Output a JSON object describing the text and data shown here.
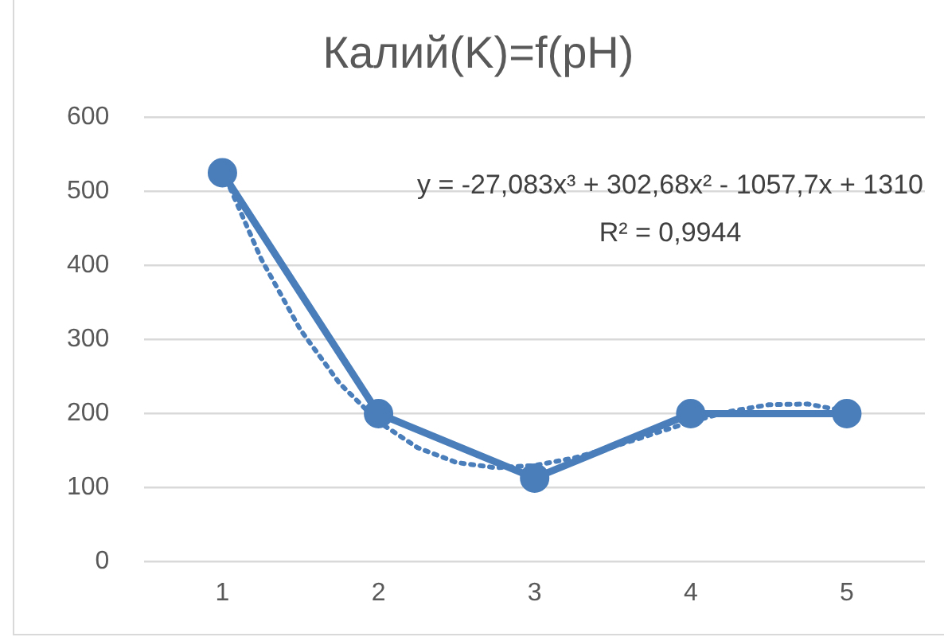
{
  "chart_data": {
    "type": "line",
    "title": "Калий(K)=f(pH)",
    "x": [
      1,
      2,
      3,
      4,
      5
    ],
    "xlim": [
      0.5,
      5.5
    ],
    "xticks": [
      1,
      2,
      3,
      4,
      5
    ],
    "ylim": [
      0,
      600
    ],
    "yticks": [
      0,
      100,
      200,
      300,
      400,
      500,
      600
    ],
    "grid": "y",
    "legend": false,
    "series": [
      {
        "color": "#4a7ebb",
        "values": [
          525,
          200,
          113,
          200,
          200
        ],
        "marker": "circle",
        "line_style": "solid"
      },
      {
        "type": "line",
        "color": "#4a7ebb",
        "x": [
          1,
          1.25,
          1.5,
          1.75,
          2,
          2.25,
          2.5,
          2.75,
          3,
          3.25,
          3.5,
          3.75,
          4,
          4.25,
          4.5,
          4.75,
          5
        ],
        "values": [
          528,
          408,
          313,
          241,
          189,
          154,
          134,
          127,
          130,
          140,
          155,
          172,
          189,
          203,
          212,
          213,
          203
        ],
        "marker": "none",
        "line_style": "dotted"
      }
    ],
    "annotations": [
      "y = -27,083x³ + 302,68x² - 1057,7x + 1310",
      "R² = 0,9944"
    ]
  }
}
